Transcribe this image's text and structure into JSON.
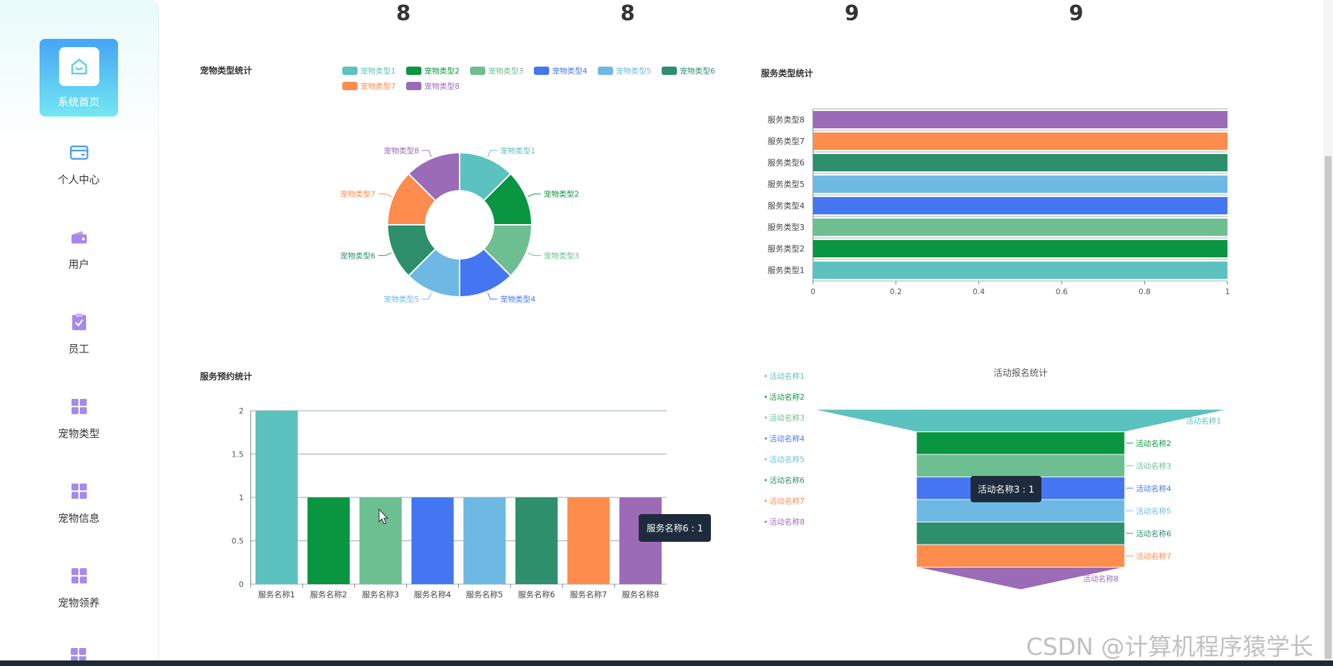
{
  "sidebar": {
    "items": [
      {
        "label": "系统首页",
        "icon": "home-icon"
      },
      {
        "label": "个人中心",
        "icon": "card-icon"
      },
      {
        "label": "用户",
        "icon": "wallet-icon"
      },
      {
        "label": "员工",
        "icon": "clipboard-icon"
      },
      {
        "label": "宠物类型",
        "icon": "grid-icon"
      },
      {
        "label": "宠物信息",
        "icon": "grid-icon"
      },
      {
        "label": "宠物领养",
        "icon": "grid-icon"
      }
    ]
  },
  "stats": [
    "8",
    "8",
    "9",
    "9"
  ],
  "colors": [
    "#5cc2bf",
    "#0a9641",
    "#6dbf91",
    "#4576f2",
    "#6eb9e4",
    "#2d8f6c",
    "#fd8c4d",
    "#9b6bb8"
  ],
  "watermark": "CSDN @计算机程序猿学长",
  "chart_data": [
    {
      "type": "pie",
      "title": "宠物类型统计",
      "categories": [
        "宠物类型1",
        "宠物类型2",
        "宠物类型3",
        "宠物类型4",
        "宠物类型5",
        "宠物类型6",
        "宠物类型7",
        "宠物类型8"
      ],
      "values": [
        1,
        1,
        1,
        1,
        1,
        1,
        1,
        1
      ],
      "legend": "top"
    },
    {
      "type": "bar",
      "orientation": "horizontal",
      "title": "服务类型统计",
      "categories": [
        "服务类型1",
        "服务类型2",
        "服务类型3",
        "服务类型4",
        "服务类型5",
        "服务类型6",
        "服务类型7",
        "服务类型8"
      ],
      "values": [
        1,
        1,
        1,
        1,
        1,
        1,
        1,
        1
      ],
      "xlim": [
        0,
        1
      ],
      "xticks": [
        "0",
        "0.2",
        "0.4",
        "0.6",
        "0.8",
        "1"
      ]
    },
    {
      "type": "bar",
      "title": "服务预约统计",
      "categories": [
        "服务名称1",
        "服务名称2",
        "服务名称3",
        "服务名称4",
        "服务名称5",
        "服务名称6",
        "服务名称7",
        "服务名称8"
      ],
      "values": [
        2,
        1,
        1,
        1,
        1,
        1,
        1,
        1
      ],
      "ylim": [
        0,
        2
      ],
      "yticks": [
        "0",
        "0.5",
        "1",
        "1.5",
        "2"
      ],
      "tooltip": "服务名称6 : 1"
    },
    {
      "type": "funnel",
      "title": "活动报名统计",
      "categories": [
        "活动名称1",
        "活动名称2",
        "活动名称3",
        "活动名称4",
        "活动名称5",
        "活动名称6",
        "活动名称7",
        "活动名称8"
      ],
      "values": [
        1,
        1,
        1,
        1,
        1,
        1,
        1,
        1
      ],
      "legend": "left",
      "tooltip": "活动名称3 : 1"
    }
  ]
}
